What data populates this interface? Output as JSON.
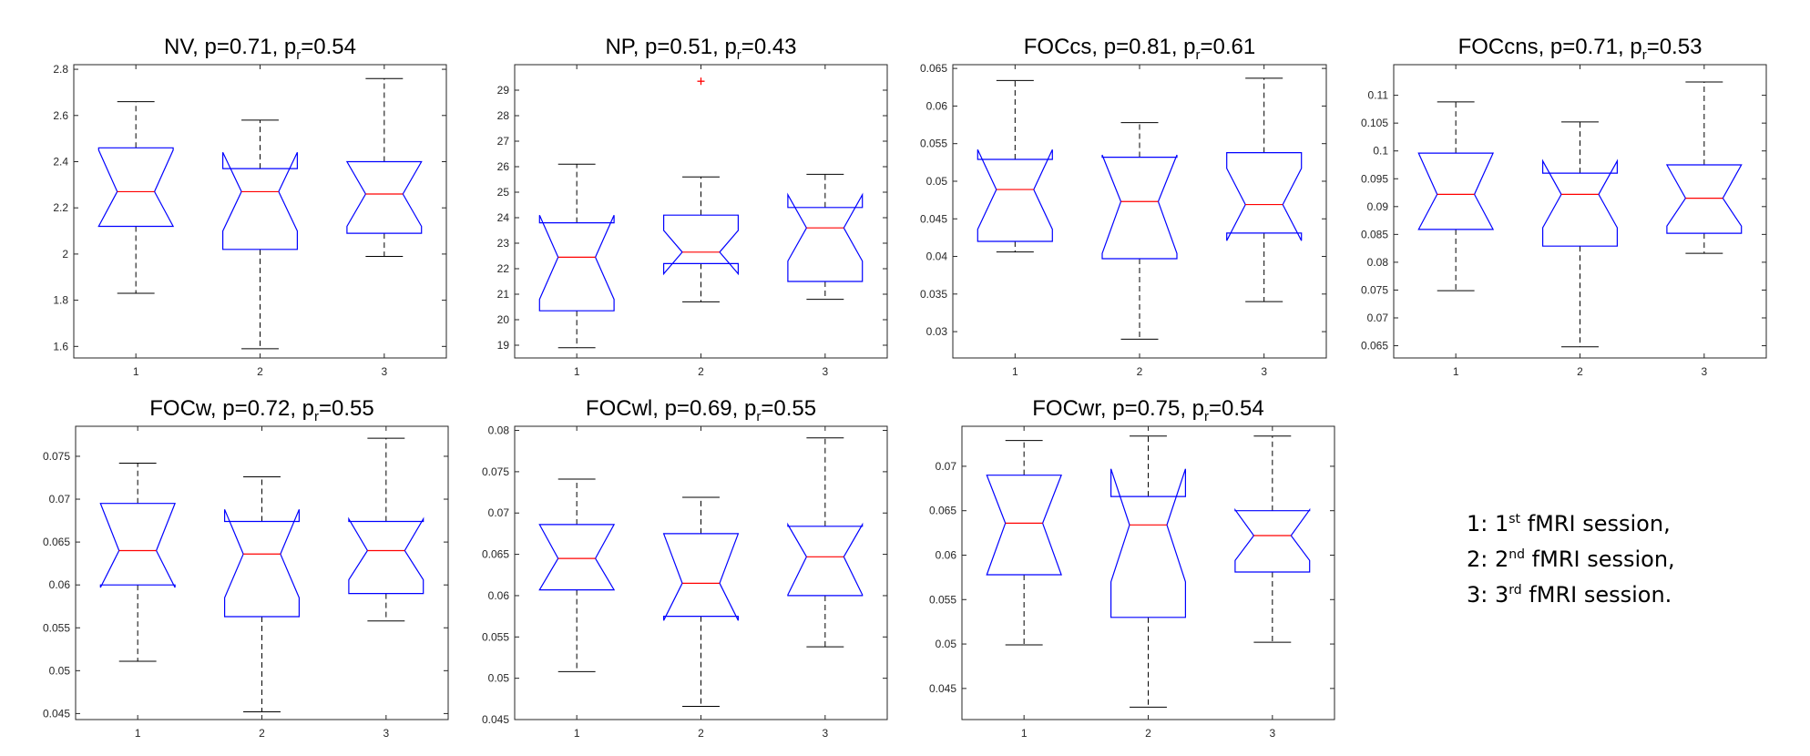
{
  "chart_data": [
    {
      "type": "boxplot",
      "title": {
        "name": "NV",
        "p": "p=0.71",
        "pr_label": "p",
        "pr_sub": "r",
        "pr_value": "=0.54"
      },
      "categories": [
        "1",
        "2",
        "3"
      ],
      "ylim": [
        1.55,
        2.82
      ],
      "yticks": [
        "1.6",
        "1.8",
        "2",
        "2.2",
        "2.4",
        "2.6",
        "2.8"
      ],
      "boxes": [
        {
          "whisker_low": 1.83,
          "q1": 2.12,
          "median": 2.27,
          "q3": 2.46,
          "whisker_high": 2.66,
          "notch_low": 2.12,
          "notch_high": 2.45
        },
        {
          "whisker_low": 1.59,
          "q1": 2.02,
          "median": 2.27,
          "q3": 2.37,
          "whisker_high": 2.58,
          "notch_low": 2.1,
          "notch_high": 2.44
        },
        {
          "whisker_low": 1.99,
          "q1": 2.09,
          "median": 2.26,
          "q3": 2.4,
          "whisker_high": 2.76,
          "notch_low": 2.12,
          "notch_high": 2.4
        }
      ],
      "outliers": []
    },
    {
      "type": "boxplot",
      "title": {
        "name": "NP",
        "p": "p=0.51",
        "pr_label": "p",
        "pr_sub": "r",
        "pr_value": "=0.43"
      },
      "categories": [
        "1",
        "2",
        "3"
      ],
      "ylim": [
        18.5,
        30
      ],
      "yticks": [
        "19",
        "20",
        "21",
        "22",
        "23",
        "24",
        "25",
        "26",
        "27",
        "28",
        "29"
      ],
      "boxes": [
        {
          "whisker_low": 18.9,
          "q1": 20.35,
          "median": 22.45,
          "q3": 23.8,
          "whisker_high": 26.1,
          "notch_low": 20.8,
          "notch_high": 24.1
        },
        {
          "whisker_low": 20.7,
          "q1": 22.2,
          "median": 22.65,
          "q3": 24.1,
          "whisker_high": 25.6,
          "notch_low": 21.8,
          "notch_high": 23.5
        },
        {
          "whisker_low": 20.8,
          "q1": 21.5,
          "median": 23.6,
          "q3": 24.4,
          "whisker_high": 25.7,
          "notch_low": 22.3,
          "notch_high": 24.9
        }
      ],
      "outliers": [
        {
          "box": 2,
          "value": 29.35
        }
      ]
    },
    {
      "type": "boxplot",
      "title": {
        "name": "FOCcs",
        "p": "p=0.81",
        "pr_label": "p",
        "pr_sub": "r",
        "pr_value": "=0.61"
      },
      "categories": [
        "1",
        "2",
        "3"
      ],
      "ylim": [
        0.0265,
        0.0655
      ],
      "yticks": [
        "0.03",
        "0.035",
        "0.04",
        "0.045",
        "0.05",
        "0.055",
        "0.06",
        "0.065"
      ],
      "boxes": [
        {
          "whisker_low": 0.0406,
          "q1": 0.042,
          "median": 0.0489,
          "q3": 0.0529,
          "whisker_high": 0.0634,
          "notch_low": 0.0436,
          "notch_high": 0.0542
        },
        {
          "whisker_low": 0.029,
          "q1": 0.0397,
          "median": 0.0473,
          "q3": 0.0532,
          "whisker_high": 0.0578,
          "notch_low": 0.0404,
          "notch_high": 0.0535
        },
        {
          "whisker_low": 0.034,
          "q1": 0.0431,
          "median": 0.0469,
          "q3": 0.0538,
          "whisker_high": 0.0637,
          "notch_low": 0.0421,
          "notch_high": 0.0517
        }
      ],
      "outliers": []
    },
    {
      "type": "boxplot",
      "title": {
        "name": "FOCcns",
        "p": "p=0.71",
        "pr_label": "p",
        "pr_sub": "r",
        "pr_value": "=0.53"
      },
      "categories": [
        "1",
        "2",
        "3"
      ],
      "ylim": [
        0.0628,
        0.1155
      ],
      "yticks": [
        "0.065",
        "0.07",
        "0.075",
        "0.08",
        "0.085",
        "0.09",
        "0.095",
        "0.1",
        "0.105",
        "0.11"
      ],
      "boxes": [
        {
          "whisker_low": 0.0749,
          "q1": 0.0859,
          "median": 0.0922,
          "q3": 0.0996,
          "whisker_high": 0.1088,
          "notch_low": 0.0859,
          "notch_high": 0.0996
        },
        {
          "whisker_low": 0.0648,
          "q1": 0.0829,
          "median": 0.0922,
          "q3": 0.096,
          "whisker_high": 0.1052,
          "notch_low": 0.0862,
          "notch_high": 0.0982
        },
        {
          "whisker_low": 0.0816,
          "q1": 0.0852,
          "median": 0.0915,
          "q3": 0.0975,
          "whisker_high": 0.1124,
          "notch_low": 0.0865,
          "notch_high": 0.0975
        }
      ],
      "outliers": []
    },
    {
      "type": "boxplot",
      "title": {
        "name": "FOCw",
        "p": "p=0.72",
        "pr_label": "p",
        "pr_sub": "r",
        "pr_value": "=0.55"
      },
      "categories": [
        "1",
        "2",
        "3"
      ],
      "ylim": [
        0.0443,
        0.0785
      ],
      "yticks": [
        "0.045",
        "0.05",
        "0.055",
        "0.06",
        "0.065",
        "0.07",
        "0.075"
      ],
      "boxes": [
        {
          "whisker_low": 0.0511,
          "q1": 0.06,
          "median": 0.064,
          "q3": 0.0695,
          "whisker_high": 0.0742,
          "notch_low": 0.0597,
          "notch_high": 0.0695
        },
        {
          "whisker_low": 0.0452,
          "q1": 0.0563,
          "median": 0.0636,
          "q3": 0.0674,
          "whisker_high": 0.0726,
          "notch_low": 0.0585,
          "notch_high": 0.0688
        },
        {
          "whisker_low": 0.0558,
          "q1": 0.059,
          "median": 0.064,
          "q3": 0.0674,
          "whisker_high": 0.0771,
          "notch_low": 0.0606,
          "notch_high": 0.0677
        }
      ],
      "outliers": []
    },
    {
      "type": "boxplot",
      "title": {
        "name": "FOCwl",
        "p": "p=0.69",
        "pr_label": "p",
        "pr_sub": "r",
        "pr_value": "=0.55"
      },
      "categories": [
        "1",
        "2",
        "3"
      ],
      "ylim": [
        0.045,
        0.0805
      ],
      "yticks": [
        "0.045",
        "0.05",
        "0.055",
        "0.06",
        "0.065",
        "0.07",
        "0.075",
        "0.08"
      ],
      "boxes": [
        {
          "whisker_low": 0.0508,
          "q1": 0.0607,
          "median": 0.0645,
          "q3": 0.0686,
          "whisker_high": 0.0741,
          "notch_low": 0.0607,
          "notch_high": 0.0686
        },
        {
          "whisker_low": 0.0466,
          "q1": 0.0575,
          "median": 0.0615,
          "q3": 0.0675,
          "whisker_high": 0.0719,
          "notch_low": 0.057,
          "notch_high": 0.0675
        },
        {
          "whisker_low": 0.0538,
          "q1": 0.06,
          "median": 0.0647,
          "q3": 0.0684,
          "whisker_high": 0.0791,
          "notch_low": 0.0601,
          "notch_high": 0.0686
        }
      ],
      "outliers": []
    },
    {
      "type": "boxplot",
      "title": {
        "name": "FOCwr",
        "p": "p=0.75",
        "pr_label": "p",
        "pr_sub": "r",
        "pr_value": "=0.54"
      },
      "categories": [
        "1",
        "2",
        "3"
      ],
      "ylim": [
        0.0415,
        0.0745
      ],
      "yticks": [
        "0.045",
        "0.05",
        "0.055",
        "0.06",
        "0.065",
        "0.07"
      ],
      "boxes": [
        {
          "whisker_low": 0.0499,
          "q1": 0.0578,
          "median": 0.0636,
          "q3": 0.069,
          "whisker_high": 0.0729,
          "notch_low": 0.0578,
          "notch_high": 0.069
        },
        {
          "whisker_low": 0.0429,
          "q1": 0.053,
          "median": 0.0634,
          "q3": 0.0666,
          "whisker_high": 0.0734,
          "notch_low": 0.057,
          "notch_high": 0.0697
        },
        {
          "whisker_low": 0.0502,
          "q1": 0.0581,
          "median": 0.0622,
          "q3": 0.065,
          "whisker_high": 0.0734,
          "notch_low": 0.0594,
          "notch_high": 0.0651
        }
      ],
      "outliers": []
    }
  ],
  "colors": {
    "box": "#0000ff",
    "median": "#ff0000",
    "whisker": "#000000",
    "outlier": "#ff0000",
    "axis": "#262626"
  },
  "legend": [
    {
      "num": "1: 1",
      "sup": "st",
      "text": " fMRI session,"
    },
    {
      "num": "2: 2",
      "sup": "nd",
      "text": " fMRI session,"
    },
    {
      "num": "3: 3",
      "sup": "rd",
      "text": " fMRI session."
    }
  ]
}
